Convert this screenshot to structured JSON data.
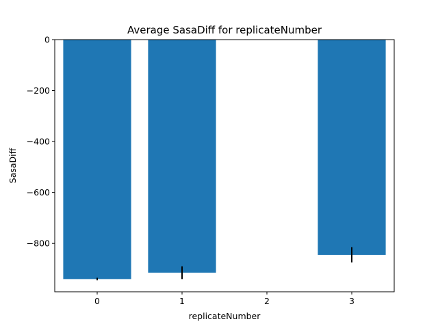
{
  "chart_data": {
    "type": "bar",
    "title": "Average SasaDiff for replicateNumber",
    "xlabel": "replicateNumber",
    "ylabel": "SasaDiff",
    "categories": [
      0,
      1,
      3
    ],
    "values": [
      -940,
      -915,
      -845
    ],
    "errors": [
      5,
      25,
      30
    ],
    "xticks": [
      0,
      1,
      2,
      3
    ],
    "yticks": [
      0,
      -200,
      -400,
      -600,
      -800
    ],
    "ytick_labels": [
      "0",
      "−200",
      "−400",
      "−600",
      "−800"
    ],
    "xlim": [
      -0.5,
      3.5
    ],
    "ylim": [
      -990,
      0
    ],
    "grid": false,
    "bar_color": "#1f77b4",
    "error_color": "#000000"
  }
}
